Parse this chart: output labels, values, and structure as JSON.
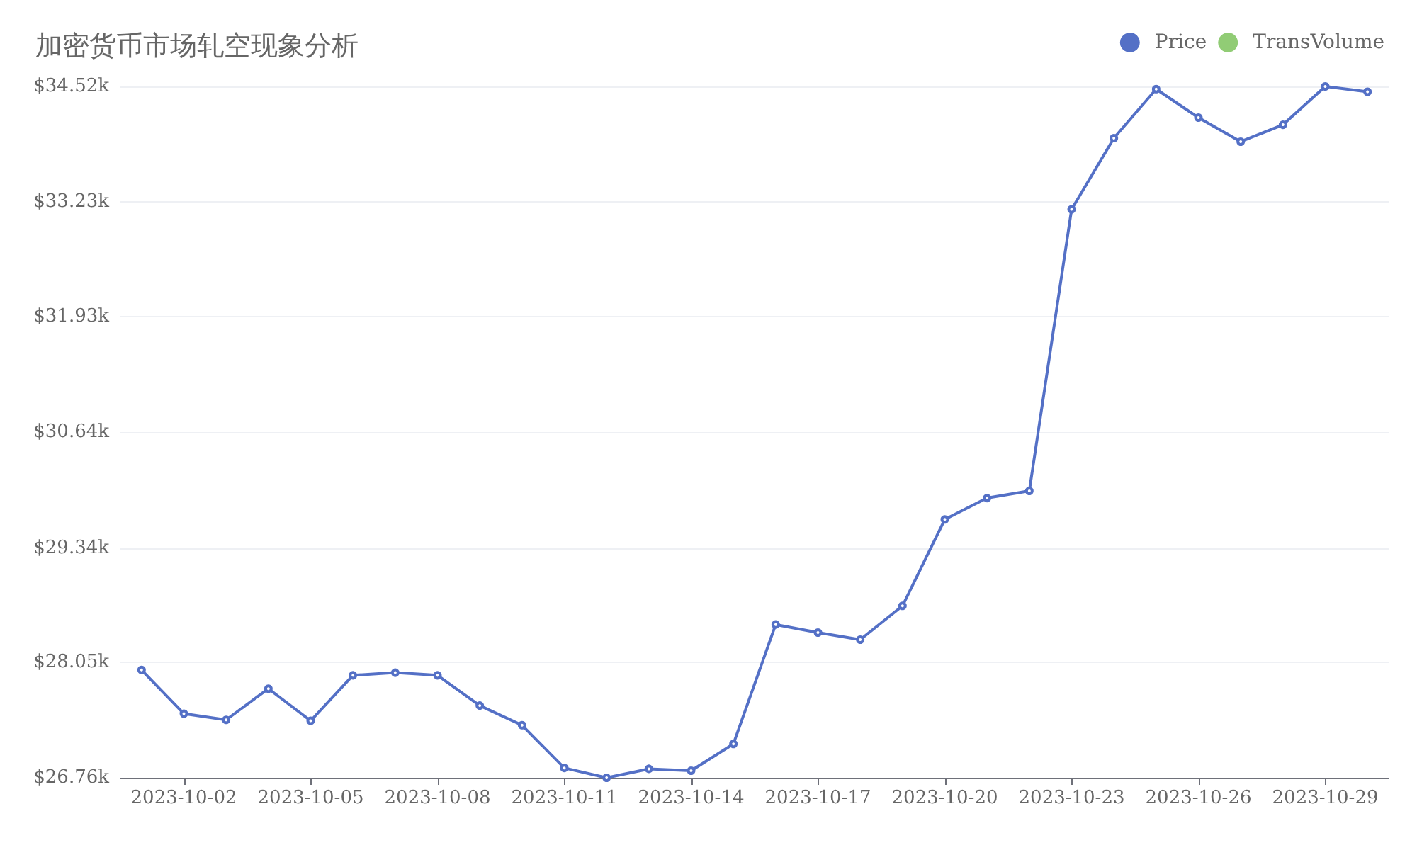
{
  "chart_data": {
    "type": "line",
    "title": "加密货币市场轧空现象分析",
    "x": [
      "2023-10-01",
      "2023-10-02",
      "2023-10-03",
      "2023-10-04",
      "2023-10-05",
      "2023-10-06",
      "2023-10-07",
      "2023-10-08",
      "2023-10-09",
      "2023-10-10",
      "2023-10-11",
      "2023-10-12",
      "2023-10-13",
      "2023-10-14",
      "2023-10-15",
      "2023-10-16",
      "2023-10-17",
      "2023-10-18",
      "2023-10-19",
      "2023-10-20",
      "2023-10-21",
      "2023-10-22",
      "2023-10-23",
      "2023-10-24",
      "2023-10-25",
      "2023-10-26",
      "2023-10-27",
      "2023-10-28",
      "2023-10-29",
      "2023-10-30"
    ],
    "series": [
      {
        "name": "Price",
        "color": "#5470c6",
        "values": [
          27970,
          27480,
          27410,
          27760,
          27400,
          27910,
          27940,
          27910,
          27570,
          27350,
          26870,
          26760,
          26860,
          26840,
          27140,
          28480,
          28390,
          28310,
          28690,
          29660,
          29900,
          29980,
          33140,
          33940,
          34490,
          34170,
          33900,
          34090,
          34520,
          34460
        ]
      },
      {
        "name": "TransVolume",
        "color": "#91cc75",
        "values": [
          null,
          null,
          null,
          null,
          null,
          null,
          null,
          null,
          null,
          null,
          null,
          null,
          null,
          null,
          null,
          null,
          null,
          null,
          null,
          null,
          null,
          null,
          null,
          null,
          null,
          null,
          null,
          null,
          null,
          null
        ]
      }
    ],
    "xlim": [
      "2023-09-30T12:00",
      "2023-10-30T12:00"
    ],
    "xticks": [
      {
        "value": "2023-10-02",
        "label": "2023-10-02"
      },
      {
        "value": "2023-10-05",
        "label": "2023-10-05"
      },
      {
        "value": "2023-10-08",
        "label": "2023-10-08"
      },
      {
        "value": "2023-10-11",
        "label": "2023-10-11"
      },
      {
        "value": "2023-10-14",
        "label": "2023-10-14"
      },
      {
        "value": "2023-10-17",
        "label": "2023-10-17"
      },
      {
        "value": "2023-10-20",
        "label": "2023-10-20"
      },
      {
        "value": "2023-10-23",
        "label": "2023-10-23"
      },
      {
        "value": "2023-10-26",
        "label": "2023-10-26"
      },
      {
        "value": "2023-10-29",
        "label": "2023-10-29"
      }
    ],
    "ylim": [
      26760,
      34520
    ],
    "yticks": [
      {
        "value": 26760,
        "label": "$26.76k"
      },
      {
        "value": 28053,
        "label": "$28.05k"
      },
      {
        "value": 29340,
        "label": "$29.34k"
      },
      {
        "value": 30640,
        "label": "$30.64k"
      },
      {
        "value": 31933,
        "label": "$31.93k"
      },
      {
        "value": 33227,
        "label": "$33.23k"
      },
      {
        "value": 34520,
        "label": "$34.52k"
      }
    ],
    "grid": "y",
    "legend": "top right",
    "marker": "circle",
    "line_style": "solid"
  }
}
